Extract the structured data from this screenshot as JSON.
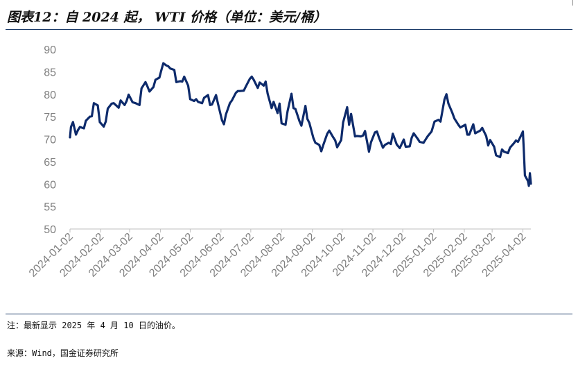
{
  "title": "图表12：自 2024 起，  WTI 价格（单位：美元/桶）",
  "note": "注：最新显示 2025 年 4 月 10 日的油价。",
  "source": "来源：Wind，国金证券研究所",
  "colors": {
    "line": "#0d2a6b",
    "axis": "#bfbfbf",
    "text": "#808080",
    "rule": "#1a3a68"
  },
  "chart_data": {
    "type": "line",
    "title": "",
    "xlabel": "",
    "ylabel": "",
    "ylim": [
      50,
      90
    ],
    "yticks": [
      "90",
      "85",
      "80",
      "75",
      "70",
      "65",
      "60",
      "55",
      "50"
    ],
    "xticks": [
      "2024-01-02",
      "2024-02-02",
      "2024-03-02",
      "2024-04-02",
      "2024-05-02",
      "2024-06-02",
      "2024-07-02",
      "2024-08-02",
      "2024-09-02",
      "2024-10-02",
      "2024-11-02",
      "2024-12-02",
      "2025-01-02",
      "2025-02-02",
      "2025-03-02",
      "2025-04-02"
    ],
    "grid": false,
    "series": [
      {
        "name": "",
        "points": [
          [
            "2024-01-02",
            70.4
          ],
          [
            "2024-01-03",
            72.7
          ],
          [
            "2024-01-05",
            73.8
          ],
          [
            "2024-01-08",
            71.0
          ],
          [
            "2024-01-10",
            72.0
          ],
          [
            "2024-01-12",
            72.7
          ],
          [
            "2024-01-16",
            72.4
          ],
          [
            "2024-01-18",
            74.1
          ],
          [
            "2024-01-22",
            75.0
          ],
          [
            "2024-01-24",
            75.1
          ],
          [
            "2024-01-26",
            78.0
          ],
          [
            "2024-01-30",
            77.5
          ],
          [
            "2024-02-01",
            73.8
          ],
          [
            "2024-02-05",
            72.8
          ],
          [
            "2024-02-07",
            73.9
          ],
          [
            "2024-02-09",
            76.8
          ],
          [
            "2024-02-13",
            77.9
          ],
          [
            "2024-02-15",
            78.0
          ],
          [
            "2024-02-20",
            77.0
          ],
          [
            "2024-02-22",
            78.6
          ],
          [
            "2024-02-26",
            77.6
          ],
          [
            "2024-02-28",
            78.5
          ],
          [
            "2024-03-01",
            79.9
          ],
          [
            "2024-03-05",
            78.2
          ],
          [
            "2024-03-08",
            78.0
          ],
          [
            "2024-03-12",
            77.6
          ],
          [
            "2024-03-14",
            81.3
          ],
          [
            "2024-03-18",
            82.7
          ],
          [
            "2024-03-20",
            81.7
          ],
          [
            "2024-03-22",
            80.6
          ],
          [
            "2024-03-26",
            81.6
          ],
          [
            "2024-03-28",
            83.2
          ],
          [
            "2024-04-01",
            83.7
          ],
          [
            "2024-04-03",
            85.4
          ],
          [
            "2024-04-05",
            86.9
          ],
          [
            "2024-04-08",
            86.4
          ],
          [
            "2024-04-10",
            86.2
          ],
          [
            "2024-04-12",
            85.7
          ],
          [
            "2024-04-16",
            85.4
          ],
          [
            "2024-04-18",
            82.7
          ],
          [
            "2024-04-22",
            82.9
          ],
          [
            "2024-04-24",
            82.8
          ],
          [
            "2024-04-26",
            83.9
          ],
          [
            "2024-04-30",
            81.9
          ],
          [
            "2024-05-02",
            78.9
          ],
          [
            "2024-05-06",
            78.5
          ],
          [
            "2024-05-08",
            78.9
          ],
          [
            "2024-05-10",
            78.3
          ],
          [
            "2024-05-14",
            78.0
          ],
          [
            "2024-05-16",
            79.2
          ],
          [
            "2024-05-20",
            79.8
          ],
          [
            "2024-05-22",
            77.6
          ],
          [
            "2024-05-24",
            77.7
          ],
          [
            "2024-05-28",
            79.8
          ],
          [
            "2024-05-30",
            77.9
          ],
          [
            "2024-06-03",
            74.2
          ],
          [
            "2024-06-05",
            73.3
          ],
          [
            "2024-06-07",
            75.5
          ],
          [
            "2024-06-11",
            78.0
          ],
          [
            "2024-06-13",
            78.6
          ],
          [
            "2024-06-17",
            80.3
          ],
          [
            "2024-06-19",
            80.7
          ],
          [
            "2024-06-21",
            80.7
          ],
          [
            "2024-06-25",
            80.8
          ],
          [
            "2024-06-27",
            81.7
          ],
          [
            "2024-07-01",
            83.4
          ],
          [
            "2024-07-03",
            83.9
          ],
          [
            "2024-07-05",
            83.2
          ],
          [
            "2024-07-09",
            81.4
          ],
          [
            "2024-07-11",
            82.6
          ],
          [
            "2024-07-15",
            81.9
          ],
          [
            "2024-07-17",
            82.8
          ],
          [
            "2024-07-19",
            80.1
          ],
          [
            "2024-07-23",
            76.9
          ],
          [
            "2024-07-25",
            78.3
          ],
          [
            "2024-07-29",
            75.8
          ],
          [
            "2024-07-31",
            77.9
          ],
          [
            "2024-08-02",
            73.5
          ],
          [
            "2024-08-06",
            73.2
          ],
          [
            "2024-08-08",
            76.2
          ],
          [
            "2024-08-12",
            80.1
          ],
          [
            "2024-08-14",
            76.9
          ],
          [
            "2024-08-16",
            76.7
          ],
          [
            "2024-08-20",
            74.0
          ],
          [
            "2024-08-22",
            73.0
          ],
          [
            "2024-08-26",
            77.4
          ],
          [
            "2024-08-28",
            74.5
          ],
          [
            "2024-08-30",
            73.6
          ],
          [
            "2024-09-03",
            70.3
          ],
          [
            "2024-09-05",
            69.2
          ],
          [
            "2024-09-09",
            68.7
          ],
          [
            "2024-09-11",
            67.3
          ],
          [
            "2024-09-13",
            68.7
          ],
          [
            "2024-09-17",
            71.2
          ],
          [
            "2024-09-19",
            71.9
          ],
          [
            "2024-09-23",
            70.4
          ],
          [
            "2024-09-25",
            69.7
          ],
          [
            "2024-09-27",
            68.2
          ],
          [
            "2024-10-01",
            69.8
          ],
          [
            "2024-10-03",
            73.7
          ],
          [
            "2024-10-07",
            77.1
          ],
          [
            "2024-10-09",
            73.2
          ],
          [
            "2024-10-11",
            75.6
          ],
          [
            "2024-10-15",
            70.6
          ],
          [
            "2024-10-17",
            70.7
          ],
          [
            "2024-10-21",
            70.6
          ],
          [
            "2024-10-23",
            70.8
          ],
          [
            "2024-10-25",
            71.8
          ],
          [
            "2024-10-29",
            67.2
          ],
          [
            "2024-10-31",
            69.3
          ],
          [
            "2024-11-04",
            71.5
          ],
          [
            "2024-11-06",
            71.7
          ],
          [
            "2024-11-08",
            70.4
          ],
          [
            "2024-11-12",
            68.1
          ],
          [
            "2024-11-14",
            68.7
          ],
          [
            "2024-11-18",
            69.2
          ],
          [
            "2024-11-20",
            68.9
          ],
          [
            "2024-11-22",
            71.2
          ],
          [
            "2024-11-26",
            68.8
          ],
          [
            "2024-11-29",
            68.0
          ],
          [
            "2024-12-03",
            69.9
          ],
          [
            "2024-12-05",
            68.3
          ],
          [
            "2024-12-09",
            68.4
          ],
          [
            "2024-12-11",
            70.3
          ],
          [
            "2024-12-13",
            71.3
          ],
          [
            "2024-12-17",
            70.1
          ],
          [
            "2024-12-19",
            69.4
          ],
          [
            "2024-12-23",
            69.2
          ],
          [
            "2024-12-27",
            70.6
          ],
          [
            "2024-12-31",
            71.7
          ],
          [
            "2025-01-03",
            73.9
          ],
          [
            "2025-01-07",
            74.3
          ],
          [
            "2025-01-09",
            73.9
          ],
          [
            "2025-01-13",
            78.8
          ],
          [
            "2025-01-15",
            80.0
          ],
          [
            "2025-01-17",
            77.9
          ],
          [
            "2025-01-21",
            75.8
          ],
          [
            "2025-01-23",
            74.6
          ],
          [
            "2025-01-27",
            73.2
          ],
          [
            "2025-01-29",
            72.6
          ],
          [
            "2025-02-03",
            73.2
          ],
          [
            "2025-02-05",
            71.0
          ],
          [
            "2025-02-07",
            71.0
          ],
          [
            "2025-02-11",
            73.3
          ],
          [
            "2025-02-13",
            71.3
          ],
          [
            "2025-02-18",
            71.9
          ],
          [
            "2025-02-20",
            72.5
          ],
          [
            "2025-02-24",
            70.7
          ],
          [
            "2025-02-26",
            68.6
          ],
          [
            "2025-02-28",
            69.8
          ],
          [
            "2025-03-04",
            68.3
          ],
          [
            "2025-03-06",
            66.4
          ],
          [
            "2025-03-10",
            66.0
          ],
          [
            "2025-03-12",
            67.7
          ],
          [
            "2025-03-14",
            67.2
          ],
          [
            "2025-03-18",
            66.9
          ],
          [
            "2025-03-20",
            68.1
          ],
          [
            "2025-03-24",
            69.1
          ],
          [
            "2025-03-26",
            69.7
          ],
          [
            "2025-03-28",
            69.4
          ],
          [
            "2025-04-01",
            71.2
          ],
          [
            "2025-04-02",
            71.7
          ],
          [
            "2025-04-03",
            66.9
          ],
          [
            "2025-04-04",
            61.9
          ],
          [
            "2025-04-07",
            60.7
          ],
          [
            "2025-04-08",
            59.6
          ],
          [
            "2025-04-09",
            62.4
          ],
          [
            "2025-04-10",
            60.1
          ]
        ]
      }
    ]
  }
}
